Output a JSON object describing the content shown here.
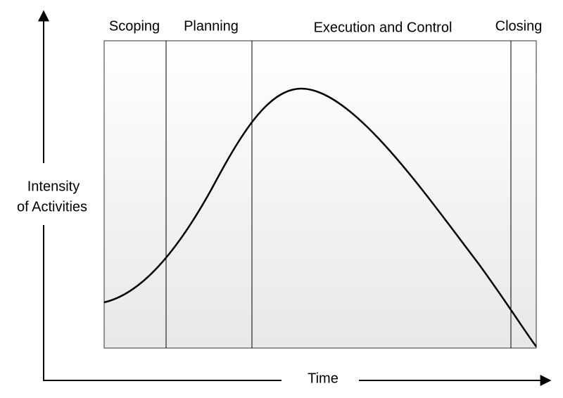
{
  "phases": [
    "Scoping",
    "Planning",
    "Execution and Control",
    "Closing"
  ],
  "y_axis_label": [
    "Intensity",
    "of Activities"
  ],
  "x_axis_label": "Time"
}
